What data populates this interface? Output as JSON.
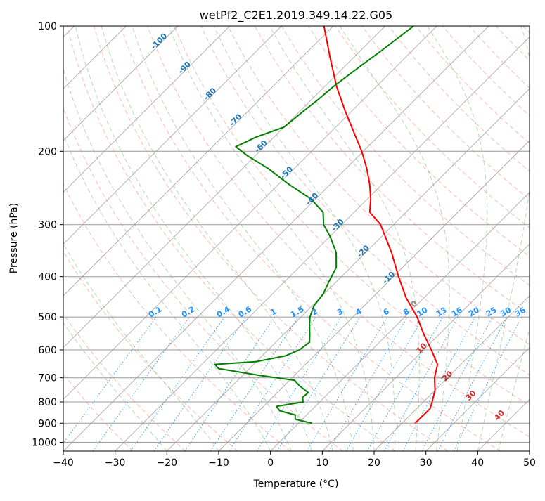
{
  "chart_data": {
    "type": "skew-t",
    "title": "wetPf2_C2E1.2019.349.14.22.G05",
    "xlabel": "Temperature (°C)",
    "ylabel": "Pressure (hPa)",
    "xlim": [
      -40,
      50
    ],
    "ylim": [
      1050,
      100
    ],
    "x_ticks": [
      -40,
      -30,
      -20,
      -10,
      0,
      10,
      20,
      30,
      40,
      50
    ],
    "y_ticks": [
      100,
      200,
      300,
      400,
      500,
      600,
      700,
      800,
      900,
      1000
    ],
    "colors": {
      "temperature": "#ff0000",
      "dewpoint": "#008000",
      "isotherm_label": "#1f77b4",
      "mixing_ratio": "#1e90ff",
      "dry_adiabat": "#ff6347",
      "moist_adiabat": "#2e8b2e",
      "moist_adiabat_label": "#d62728"
    },
    "series": [
      {
        "name": "Temperature",
        "points": [
          {
            "p": 900,
            "t": 22.5
          },
          {
            "p": 860,
            "t": 22.6
          },
          {
            "p": 830,
            "t": 22.6
          },
          {
            "p": 800,
            "t": 21.7
          },
          {
            "p": 750,
            "t": 20.0
          },
          {
            "p": 700,
            "t": 17.5
          },
          {
            "p": 650,
            "t": 15.5
          },
          {
            "p": 600,
            "t": 11.5
          },
          {
            "p": 550,
            "t": 7.0
          },
          {
            "p": 500,
            "t": 2.4
          },
          {
            "p": 450,
            "t": -3.4
          },
          {
            "p": 400,
            "t": -9.0
          },
          {
            "p": 350,
            "t": -15.0
          },
          {
            "p": 300,
            "t": -22.5
          },
          {
            "p": 280,
            "t": -27.0
          },
          {
            "p": 260,
            "t": -29.4
          },
          {
            "p": 240,
            "t": -32.4
          },
          {
            "p": 220,
            "t": -36.0
          },
          {
            "p": 200,
            "t": -40.3
          },
          {
            "p": 180,
            "t": -45.5
          },
          {
            "p": 160,
            "t": -51.3
          },
          {
            "p": 140,
            "t": -57.6
          },
          {
            "p": 120,
            "t": -64.2
          },
          {
            "p": 100,
            "t": -71.8
          }
        ]
      },
      {
        "name": "Dewpoint",
        "points": [
          {
            "p": 900,
            "t": 2.6
          },
          {
            "p": 880,
            "t": -1.4
          },
          {
            "p": 860,
            "t": -2.2
          },
          {
            "p": 840,
            "t": -6.0
          },
          {
            "p": 820,
            "t": -7.5
          },
          {
            "p": 800,
            "t": -3.2
          },
          {
            "p": 780,
            "t": -4.2
          },
          {
            "p": 760,
            "t": -4.0
          },
          {
            "p": 730,
            "t": -7.2
          },
          {
            "p": 710,
            "t": -9.0
          },
          {
            "p": 690,
            "t": -17.0
          },
          {
            "p": 665,
            "t": -26.0
          },
          {
            "p": 650,
            "t": -27.5
          },
          {
            "p": 640,
            "t": -20.0
          },
          {
            "p": 620,
            "t": -15.5
          },
          {
            "p": 600,
            "t": -14.0
          },
          {
            "p": 575,
            "t": -13.5
          },
          {
            "p": 550,
            "t": -15.0
          },
          {
            "p": 520,
            "t": -17.0
          },
          {
            "p": 500,
            "t": -18.3
          },
          {
            "p": 470,
            "t": -19.7
          },
          {
            "p": 440,
            "t": -20.2
          },
          {
            "p": 410,
            "t": -21.5
          },
          {
            "p": 380,
            "t": -22.8
          },
          {
            "p": 350,
            "t": -25.7
          },
          {
            "p": 320,
            "t": -30.0
          },
          {
            "p": 300,
            "t": -33.5
          },
          {
            "p": 280,
            "t": -36.0
          },
          {
            "p": 260,
            "t": -41.0
          },
          {
            "p": 240,
            "t": -48.0
          },
          {
            "p": 220,
            "t": -55.0
          },
          {
            "p": 205,
            "t": -61.5
          },
          {
            "p": 195,
            "t": -65.5
          },
          {
            "p": 185,
            "t": -63.5
          },
          {
            "p": 175,
            "t": -60.0
          },
          {
            "p": 160,
            "t": -59.3
          },
          {
            "p": 150,
            "t": -58.7
          },
          {
            "p": 140,
            "t": -58.3
          },
          {
            "p": 130,
            "t": -57.5
          },
          {
            "p": 115,
            "t": -56.0
          },
          {
            "p": 100,
            "t": -54.5
          }
        ]
      }
    ],
    "isotherm_labels": [
      {
        "text": "-100",
        "t": -100
      },
      {
        "text": "-90",
        "t": -90
      },
      {
        "text": "-80",
        "t": -80
      },
      {
        "text": "-70",
        "t": -70
      },
      {
        "text": "-60",
        "t": -60
      },
      {
        "text": "-50",
        "t": -50
      },
      {
        "text": "-40",
        "t": -40
      },
      {
        "text": "-30",
        "t": -30
      },
      {
        "text": "-20",
        "t": -20
      },
      {
        "text": "-10",
        "t": -10
      },
      {
        "text": "0",
        "t": 0
      }
    ],
    "mixing_ratio_labels": [
      "0.1",
      "0.2",
      "0.4",
      "0.6",
      "1",
      "1.5",
      "2",
      "3",
      "4",
      "6",
      "8",
      "10",
      "13",
      "16",
      "20",
      "25",
      "30",
      "36"
    ],
    "moist_adiabat_labels": [
      "10",
      "20",
      "30",
      "40"
    ]
  }
}
